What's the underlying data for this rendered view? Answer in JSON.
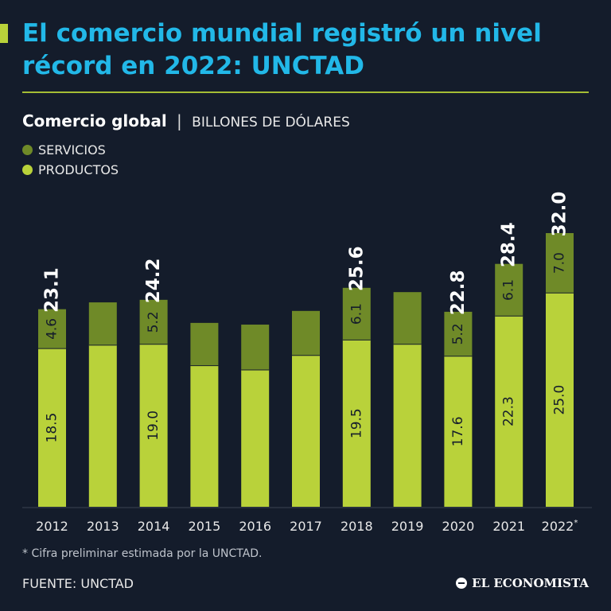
{
  "header": {
    "title": "El comercio mundial registró un nivel récord en 2022: UNCTAD"
  },
  "subtitle": {
    "main": "Comercio global",
    "separator": "|",
    "unit": "BILLONES DE DÓLARES"
  },
  "colors": {
    "background": "#141c2b",
    "title": "#22b8e8",
    "servicios": "#6f8a28",
    "productos": "#b9d23a"
  },
  "legend": [
    {
      "label": "SERVICIOS",
      "color": "#6f8a28"
    },
    {
      "label": "PRODUCTOS",
      "color": "#b9d23a"
    }
  ],
  "chart_data": {
    "type": "bar",
    "stacked": true,
    "categories": [
      "2012",
      "2013",
      "2014",
      "2015",
      "2016",
      "2017",
      "2018",
      "2019",
      "2020",
      "2021",
      "2022"
    ],
    "category_marks": [
      "",
      "",
      "",
      "",
      "",
      "",
      "",
      "",
      "",
      "",
      "*"
    ],
    "series": [
      {
        "name": "PRODUCTOS",
        "values": [
          18.5,
          18.9,
          19.0,
          16.5,
          16.0,
          17.7,
          19.5,
          19.0,
          17.6,
          22.3,
          25.0
        ]
      },
      {
        "name": "SERVICIOS",
        "values": [
          4.6,
          5.0,
          5.2,
          5.0,
          5.3,
          5.2,
          6.1,
          6.1,
          5.2,
          6.1,
          7.0
        ]
      }
    ],
    "segment_labels": {
      "PRODUCTOS": [
        "18.5",
        "",
        "19.0",
        "",
        "",
        "",
        "19.5",
        "",
        "17.6",
        "22.3",
        "25.0"
      ],
      "SERVICIOS": [
        "4.6",
        "",
        "5.2",
        "",
        "",
        "",
        "6.1",
        "",
        "5.2",
        "6.1",
        "7.0"
      ]
    },
    "total_labels": [
      "23.1",
      "",
      "24.2",
      "",
      "",
      "",
      "25.6",
      "",
      "22.8",
      "28.4",
      "32.0"
    ],
    "ylim": [
      0,
      32
    ]
  },
  "footnote": "* Cifra preliminar estimada por la UNCTAD.",
  "source": "FUENTE: UNCTAD",
  "brand": "EL ECONOMISTA"
}
